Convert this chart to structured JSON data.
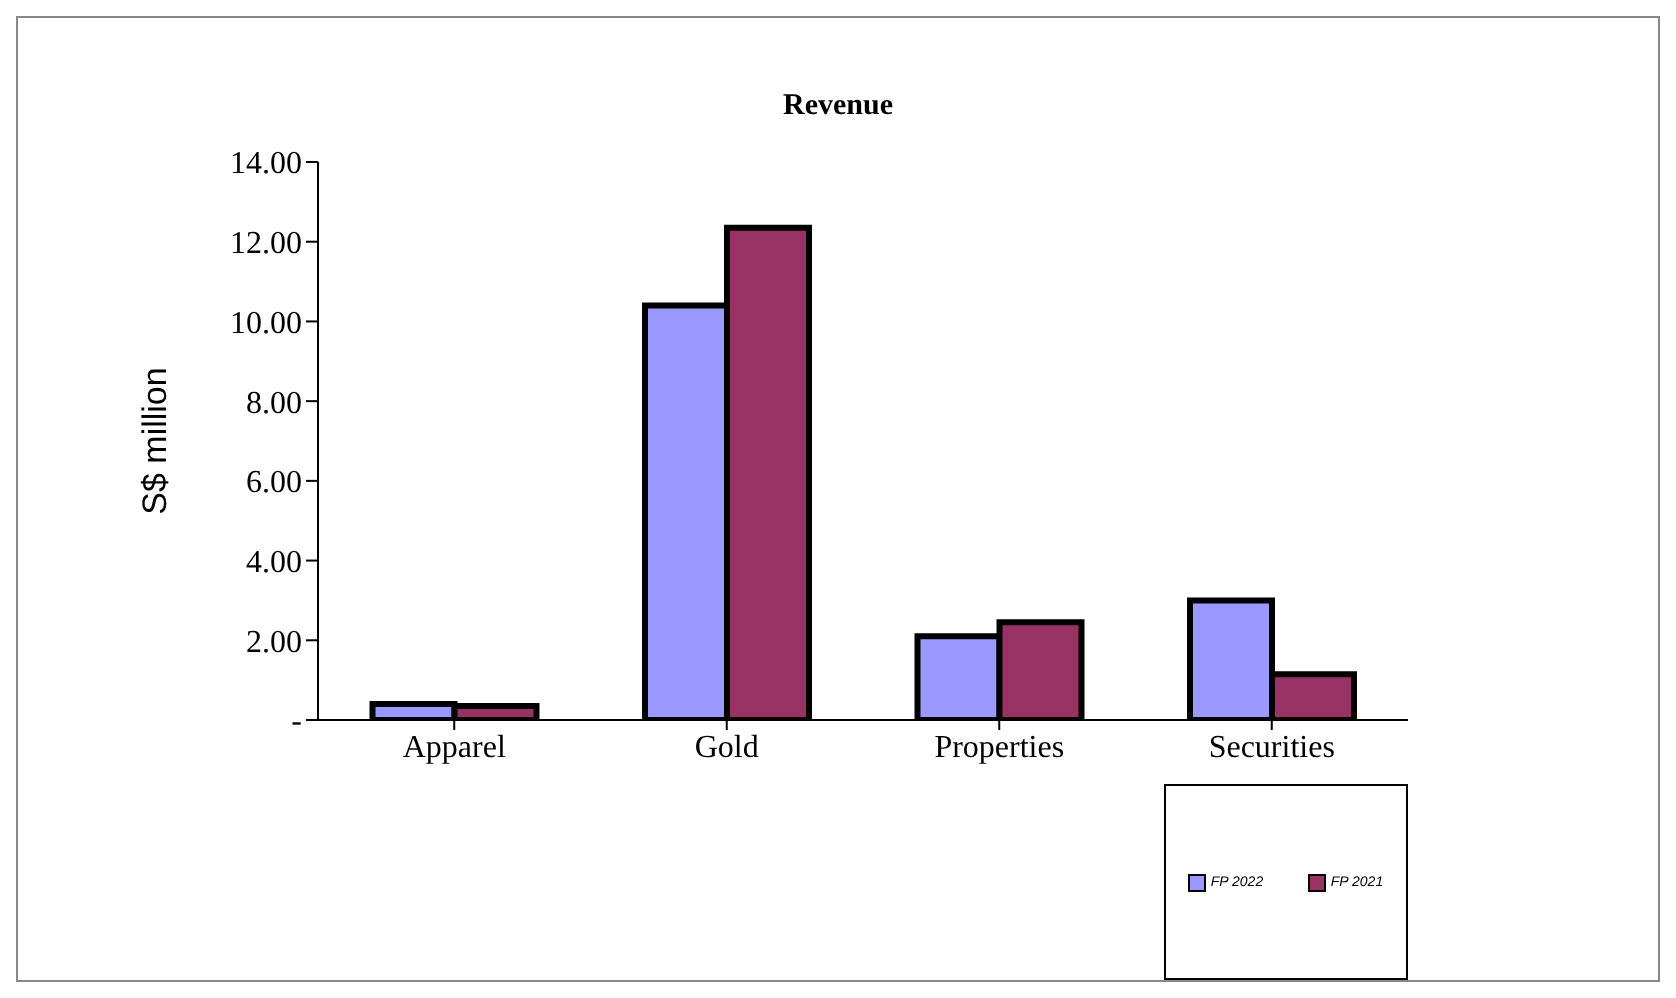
{
  "chart_data": {
    "type": "bar",
    "title": "Revenue",
    "ylabel": "S$ million",
    "categories": [
      "Apparel",
      "Gold",
      "Properties",
      "Securities"
    ],
    "series": [
      {
        "name": "FP 2022",
        "color": "#9999ff",
        "values": [
          0.4,
          10.4,
          2.1,
          3.0
        ]
      },
      {
        "name": "FP 2021",
        "color": "#993366",
        "values": [
          0.35,
          12.35,
          2.45,
          1.15
        ]
      }
    ],
    "ylim": [
      0,
      14
    ],
    "yticks": [
      {
        "value": 0,
        "label": "-"
      },
      {
        "value": 2,
        "label": "2.00"
      },
      {
        "value": 4,
        "label": "4.00"
      },
      {
        "value": 6,
        "label": "6.00"
      },
      {
        "value": 8,
        "label": "8.00"
      },
      {
        "value": 10,
        "label": "10.00"
      },
      {
        "value": 12,
        "label": "12.00"
      },
      {
        "value": 14,
        "label": "14.00"
      }
    ],
    "grid": false,
    "legend": "bottom right"
  }
}
